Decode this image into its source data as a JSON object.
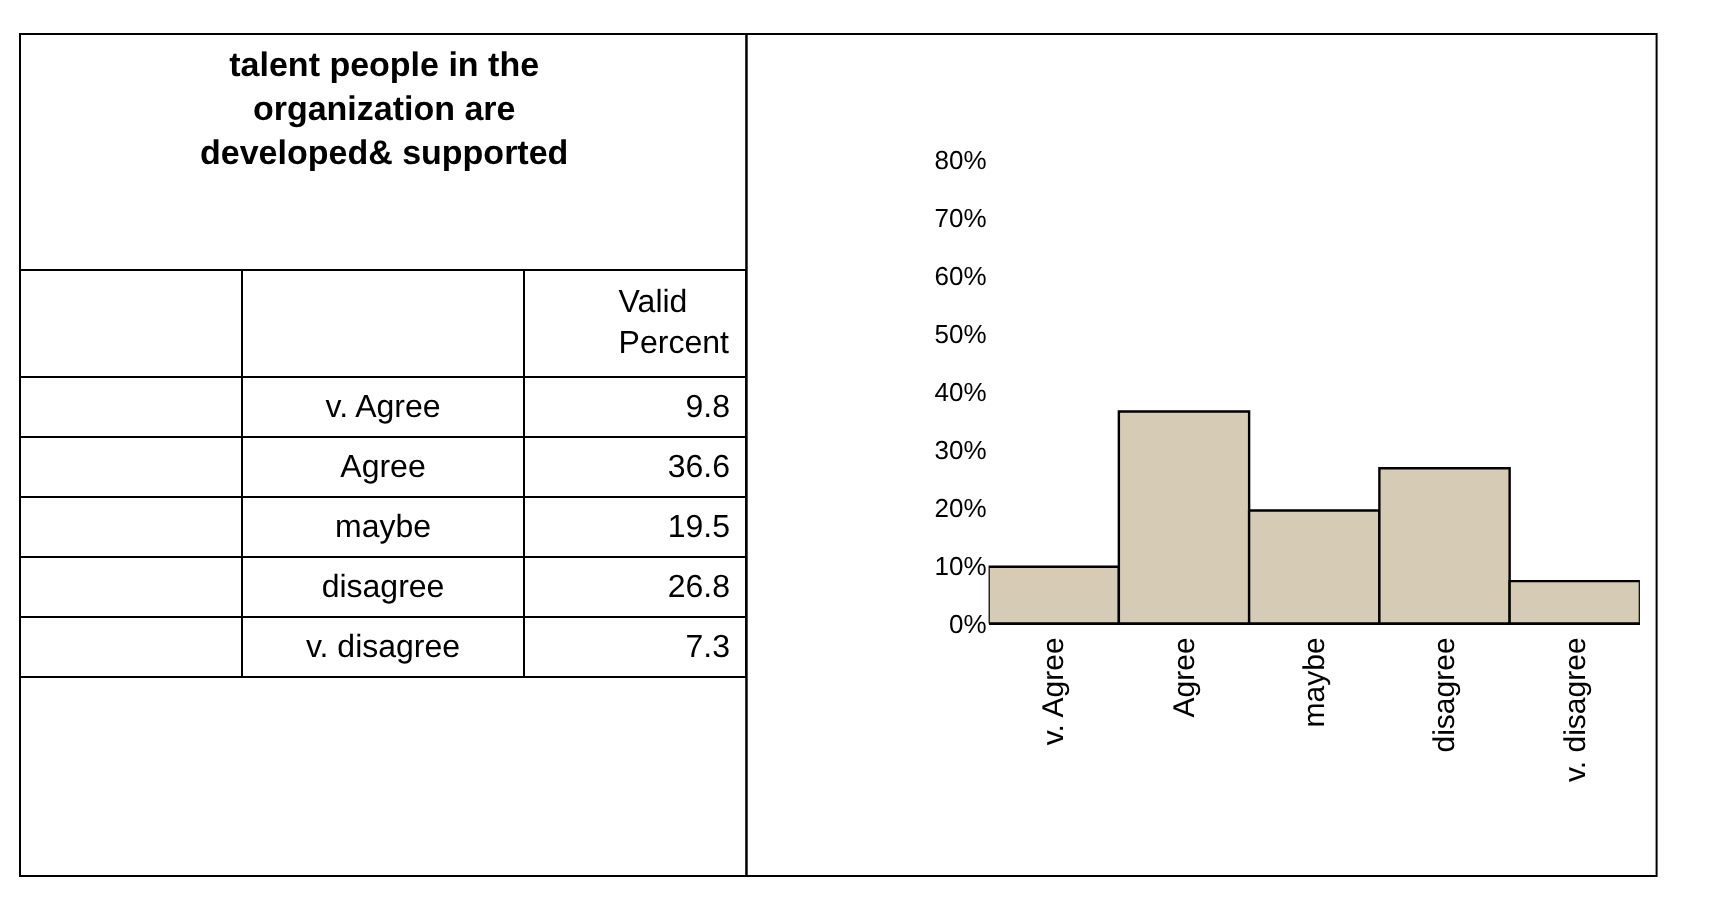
{
  "chart_data": [
    {
      "type": "other",
      "title": "talent people in the organization are developed& supported",
      "annotations": [
        "Valid Percent",
        "v. Agree",
        "9.8",
        "Agree",
        "36.6",
        "maybe",
        "19.5",
        "disagree",
        "26.8",
        "v. disagree",
        "7.3"
      ]
    },
    {
      "type": "bar",
      "categories": [
        "v. Agree",
        "Agree",
        "maybe",
        "disagree",
        "v. disagree"
      ],
      "values": [
        9.8,
        36.6,
        19.5,
        26.8,
        7.3
      ],
      "color": "#d6cbb5",
      "ylim": [
        0,
        80
      ],
      "yticks": [
        {
          "value": 0,
          "label": "0%"
        },
        {
          "value": 10,
          "label": "10%"
        },
        {
          "value": 20,
          "label": "20%"
        },
        {
          "value": 30,
          "label": "30%"
        },
        {
          "value": 40,
          "label": "40%"
        },
        {
          "value": 50,
          "label": "50%"
        },
        {
          "value": 60,
          "label": "60%"
        },
        {
          "value": 70,
          "label": "70%"
        },
        {
          "value": 80,
          "label": "80%"
        }
      ],
      "grid": false
    }
  ]
}
